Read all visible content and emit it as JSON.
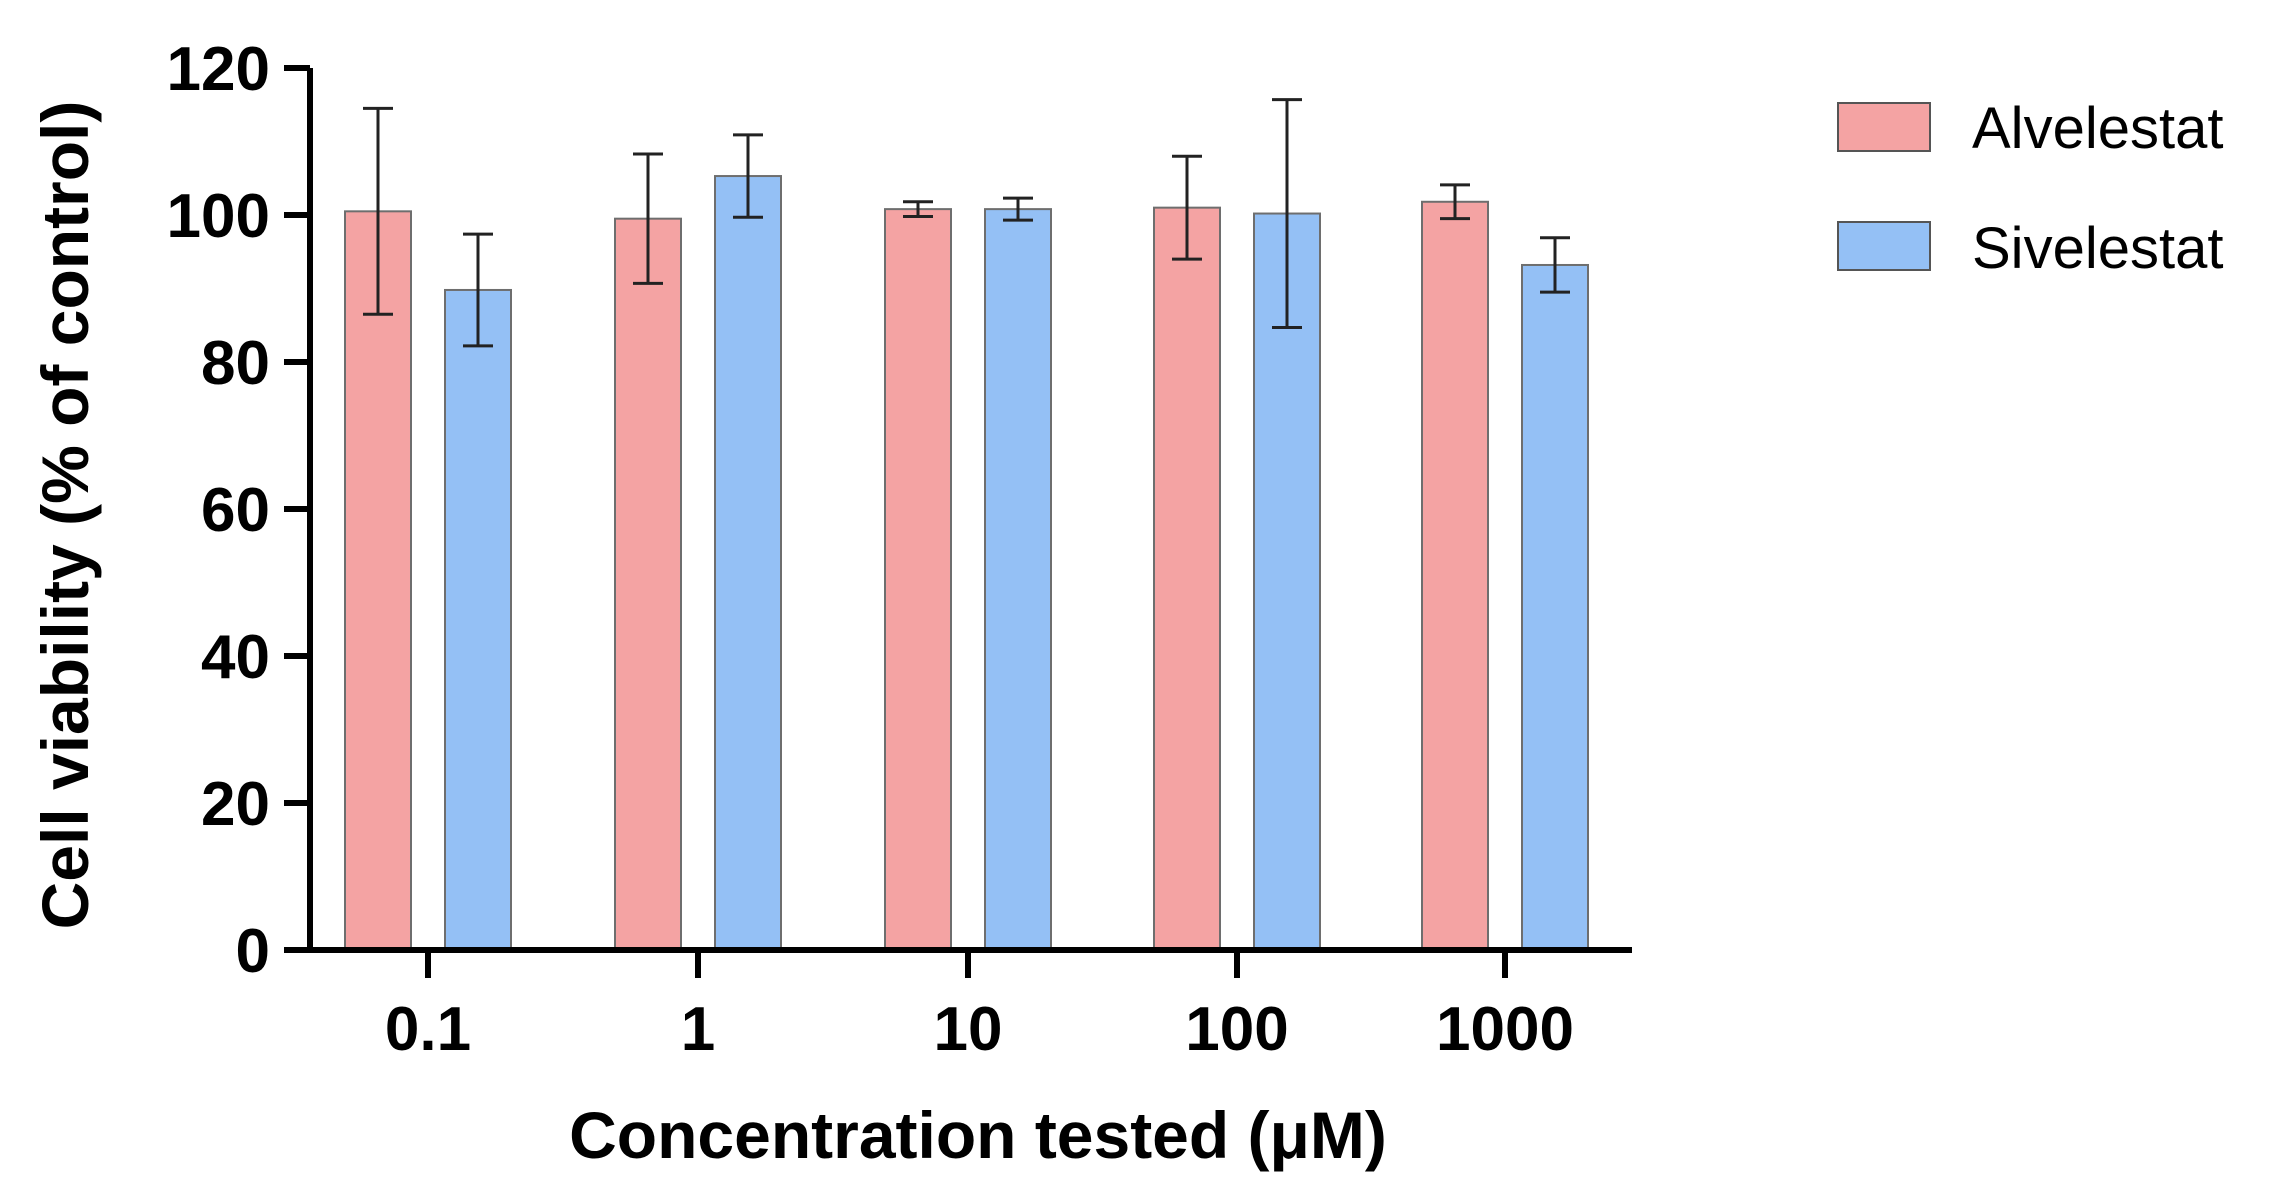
{
  "chart_data": {
    "type": "bar",
    "title": "",
    "xlabel": "Concentration tested (μM)",
    "ylabel": "Cell viability (% of control)",
    "ylim": [
      0,
      120
    ],
    "yticks": [
      0,
      20,
      40,
      60,
      80,
      100,
      120
    ],
    "categories": [
      "0.1",
      "1",
      "10",
      "100",
      "1000"
    ],
    "series": [
      {
        "name": "Alvelestat",
        "color": "#f4a3a3",
        "values": [
          100.5,
          99.5,
          100.8,
          101.0,
          101.8
        ],
        "error": [
          14.0,
          8.8,
          1.0,
          7.0,
          2.3
        ]
      },
      {
        "name": "Sivelestat",
        "color": "#94c0f5",
        "values": [
          89.8,
          105.3,
          100.8,
          100.2,
          93.2
        ],
        "error": [
          7.6,
          5.6,
          1.5,
          15.5,
          3.7
        ]
      }
    ],
    "legend_position": "top-right",
    "grid": false
  }
}
